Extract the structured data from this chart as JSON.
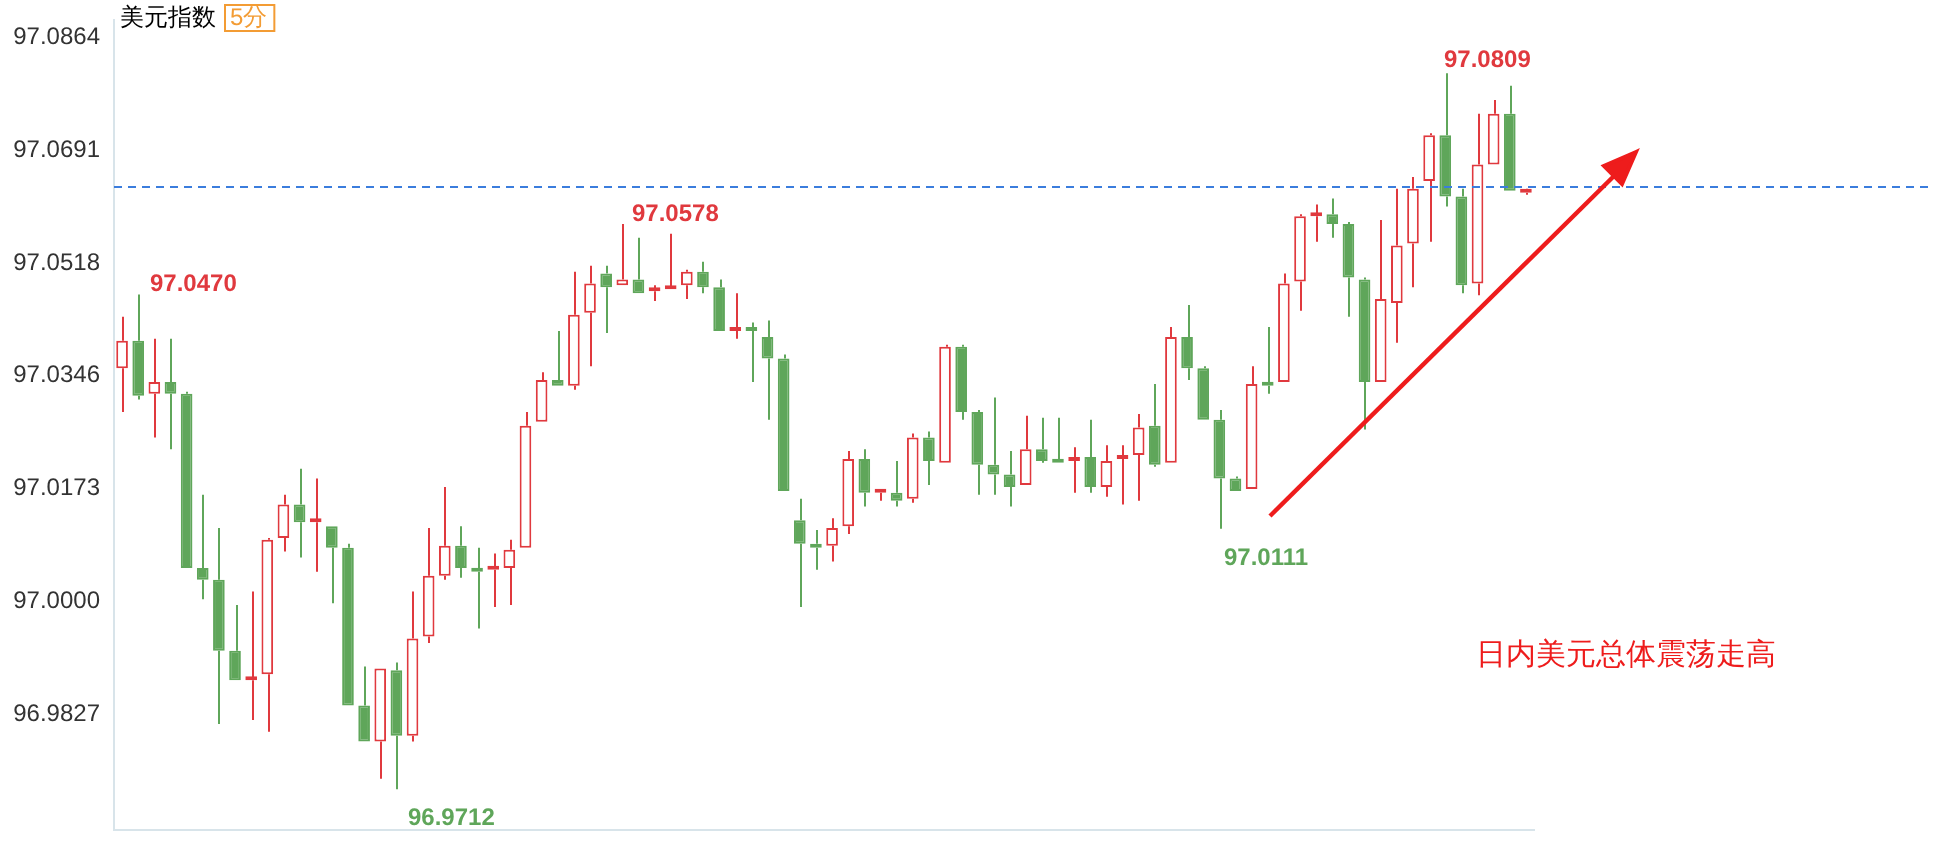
{
  "chart_data": {
    "type": "candlestick",
    "title": "美元指数",
    "subtitle": "5分",
    "categories": [
      null,
      null,
      null,
      null,
      null,
      null,
      null,
      null,
      null,
      null,
      null,
      null,
      null,
      null,
      null,
      null,
      null,
      null,
      null,
      null,
      null,
      null,
      null,
      null,
      null,
      null,
      null,
      null,
      null,
      null,
      null,
      null,
      null,
      null,
      null,
      null,
      null,
      null,
      null,
      null,
      null,
      null,
      null,
      null,
      null,
      null,
      null,
      null,
      null,
      null,
      null,
      null,
      null,
      null,
      null,
      null,
      null,
      null,
      null,
      null,
      null,
      null,
      null,
      null,
      null,
      null,
      null,
      null,
      null,
      null,
      null,
      null,
      null,
      null,
      null,
      null,
      null,
      null,
      null,
      null,
      null,
      null,
      null,
      null,
      null,
      null,
      null,
      null
    ],
    "ohlc": [
      [
        97.0357,
        97.0436,
        97.029,
        97.0399
      ],
      [
        97.0399,
        97.047,
        97.0309,
        97.0315
      ],
      [
        97.0318,
        97.0402,
        97.0251,
        97.0336
      ],
      [
        97.0336,
        97.0402,
        97.0233,
        97.0318
      ],
      [
        97.0318,
        97.0321,
        97.0051,
        97.0051
      ],
      [
        97.0051,
        97.0163,
        97.0003,
        97.0033
      ],
      [
        97.0033,
        97.0112,
        96.9812,
        96.9924
      ],
      [
        96.9924,
        96.9994,
        96.9879,
        96.9879
      ],
      [
        96.9879,
        97.0015,
        96.9818,
        96.9882
      ],
      [
        96.9888,
        97.0097,
        96.98,
        97.0094
      ],
      [
        97.0097,
        97.0163,
        97.0076,
        97.0148
      ],
      [
        97.0148,
        97.0203,
        97.0067,
        97.0121
      ],
      [
        97.0121,
        97.0188,
        97.0045,
        97.0124
      ],
      [
        97.0115,
        97.0115,
        96.9997,
        97.0082
      ],
      [
        97.0082,
        97.0088,
        96.984,
        96.984
      ],
      [
        96.984,
        96.99,
        96.9785,
        96.9785
      ],
      [
        96.9785,
        96.9897,
        96.9728,
        96.9897
      ],
      [
        96.9894,
        96.9906,
        96.9712,
        96.9794
      ],
      [
        96.9794,
        97.0015,
        96.9785,
        96.9943
      ],
      [
        96.9946,
        97.0112,
        96.9936,
        97.0039
      ],
      [
        97.0039,
        97.0175,
        97.0033,
        97.0085
      ],
      [
        97.0085,
        97.0115,
        97.0036,
        97.0051
      ],
      [
        97.0051,
        97.0082,
        96.9958,
        97.0045
      ],
      [
        97.0048,
        97.0073,
        96.9991,
        97.0051
      ],
      [
        97.0051,
        97.0094,
        96.9994,
        97.0079
      ],
      [
        97.0082,
        97.029,
        97.0082,
        97.0269
      ],
      [
        97.0275,
        97.0351,
        97.0275,
        97.0339
      ],
      [
        97.0339,
        97.0414,
        97.033,
        97.033
      ],
      [
        97.033,
        97.0505,
        97.0324,
        97.0439
      ],
      [
        97.0442,
        97.0514,
        97.036,
        97.0487
      ],
      [
        97.0502,
        97.0514,
        97.0411,
        97.0481
      ],
      [
        97.0484,
        97.0578,
        97.0484,
        97.0493
      ],
      [
        97.0493,
        97.0557,
        97.0472,
        97.0472
      ],
      [
        97.0475,
        97.0484,
        97.046,
        97.0478
      ],
      [
        97.0478,
        97.0563,
        97.0478,
        97.0481
      ],
      [
        97.0484,
        97.0508,
        97.0463,
        97.0505
      ],
      [
        97.0505,
        97.052,
        97.0472,
        97.0481
      ],
      [
        97.0481,
        97.0493,
        97.0414,
        97.0414
      ],
      [
        97.0414,
        97.0472,
        97.0402,
        97.0417
      ],
      [
        97.0417,
        97.0427,
        97.0336,
        97.0414
      ],
      [
        97.0405,
        97.043,
        97.0278,
        97.0372
      ],
      [
        97.0372,
        97.0378,
        97.0169,
        97.0169
      ],
      [
        97.0124,
        97.0157,
        96.9991,
        97.0088
      ],
      [
        97.0088,
        97.0109,
        97.0048,
        97.0082
      ],
      [
        97.0085,
        97.0127,
        97.0061,
        97.0112
      ],
      [
        97.0115,
        97.023,
        97.0103,
        97.0218
      ],
      [
        97.0218,
        97.0233,
        97.0145,
        97.0166
      ],
      [
        97.0166,
        97.0169,
        97.0154,
        97.0169
      ],
      [
        97.0166,
        97.0215,
        97.0145,
        97.0154
      ],
      [
        97.0157,
        97.0257,
        97.0151,
        97.0251
      ],
      [
        97.0251,
        97.026,
        97.0178,
        97.0215
      ],
      [
        97.0212,
        97.0393,
        97.0212,
        97.039
      ],
      [
        97.039,
        97.0393,
        97.0278,
        97.029
      ],
      [
        97.029,
        97.0293,
        97.0163,
        97.0209
      ],
      [
        97.0209,
        97.0312,
        97.0163,
        97.0194
      ],
      [
        97.0194,
        97.023,
        97.0145,
        97.0175
      ],
      [
        97.0178,
        97.0284,
        97.0178,
        97.0233
      ],
      [
        97.0233,
        97.0281,
        97.0212,
        97.0215
      ],
      [
        97.0215,
        97.0281,
        97.0212,
        97.0212
      ],
      [
        97.0215,
        97.0236,
        97.0166,
        97.0221
      ],
      [
        97.0221,
        97.0278,
        97.0166,
        97.0175
      ],
      [
        97.0175,
        97.0239,
        97.016,
        97.0215
      ],
      [
        97.0218,
        97.0239,
        97.0148,
        97.0221
      ],
      [
        97.0224,
        97.0287,
        97.0154,
        97.0266
      ],
      [
        97.0269,
        97.0333,
        97.0206,
        97.0209
      ],
      [
        97.0212,
        97.042,
        97.0212,
        97.0405
      ],
      [
        97.0405,
        97.0454,
        97.0339,
        97.0357
      ],
      [
        97.0357,
        97.036,
        97.0278,
        97.0278
      ],
      [
        97.0278,
        97.0293,
        97.0111,
        97.0188
      ],
      [
        97.0188,
        97.0191,
        97.0169,
        97.0169
      ],
      [
        97.0172,
        97.036,
        97.0172,
        97.0333
      ],
      [
        97.0336,
        97.042,
        97.0318,
        97.033
      ],
      [
        97.0336,
        97.0502,
        97.0336,
        97.0487
      ],
      [
        97.049,
        97.0593,
        97.0445,
        97.059
      ],
      [
        97.059,
        97.0608,
        97.0551,
        97.0593
      ],
      [
        97.0593,
        97.0617,
        97.0557,
        97.0578
      ],
      [
        97.0578,
        97.0581,
        97.0436,
        97.0496
      ],
      [
        97.0493,
        97.0496,
        97.0263,
        97.0336
      ],
      [
        97.0336,
        97.0584,
        97.0336,
        97.0463
      ],
      [
        97.0457,
        97.0632,
        97.0396,
        97.0545
      ],
      [
        97.0548,
        97.065,
        97.0481,
        97.0632
      ],
      [
        97.0644,
        97.0717,
        97.0551,
        97.0714
      ],
      [
        97.0714,
        97.0809,
        97.0605,
        97.062
      ],
      [
        97.062,
        97.0632,
        97.0472,
        97.0484
      ],
      [
        97.0487,
        97.0747,
        97.0469,
        97.0669
      ],
      [
        97.0669,
        97.0768,
        97.0669,
        97.0747
      ],
      [
        97.0747,
        97.079,
        97.0629,
        97.0629
      ],
      [
        97.0626,
        97.0632,
        97.0623,
        97.0629
      ]
    ],
    "ylim": [
      96.965,
      97.089
    ],
    "yticks": [
      96.9827,
      {
        "value": 97,
        "label": "97.0000"
      },
      97.0173,
      97.0346,
      97.0518,
      97.0691,
      97.0864
    ],
    "ref_lines": [
      {
        "axis": "y",
        "value": 97.0635,
        "color": "#3b7ddd",
        "line_style": "dashed"
      }
    ],
    "annotations": [
      "97.0470",
      "97.0578",
      "96.9712",
      "97.0111",
      "97.0809",
      "日内美元总体震荡走高"
    ],
    "legend": false
  }
}
